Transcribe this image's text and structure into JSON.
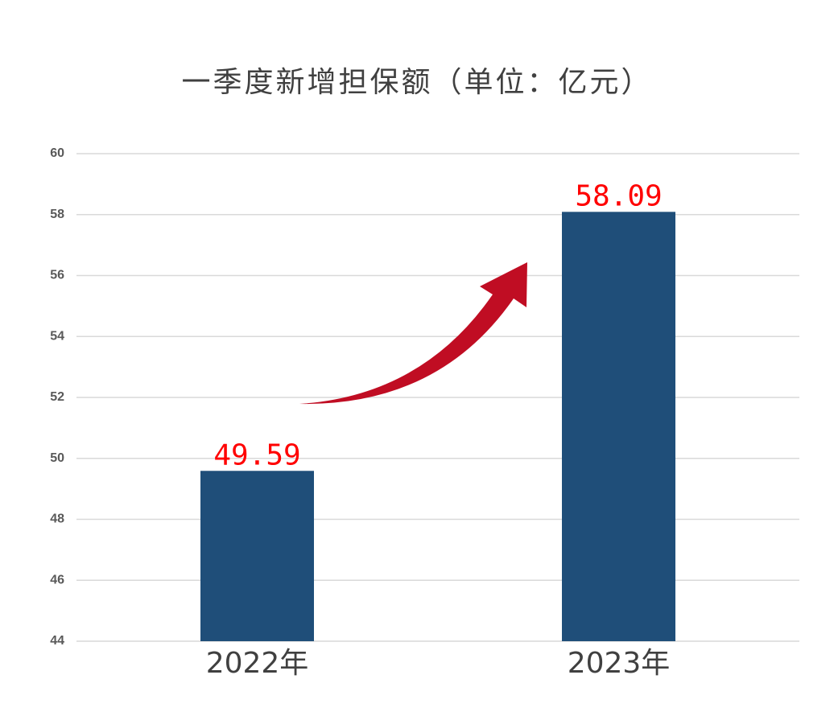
{
  "chart_data": {
    "type": "bar",
    "title": "一季度新增担保额（单位：亿元）",
    "categories": [
      "2022年",
      "2023年"
    ],
    "values": [
      49.59,
      58.09
    ],
    "color": "#1f4e79",
    "value_label_color": "#ff0000",
    "ylim": [
      44,
      60
    ],
    "yticks": [
      44,
      46,
      48,
      50,
      52,
      54,
      56,
      58,
      60
    ],
    "grid": true
  }
}
